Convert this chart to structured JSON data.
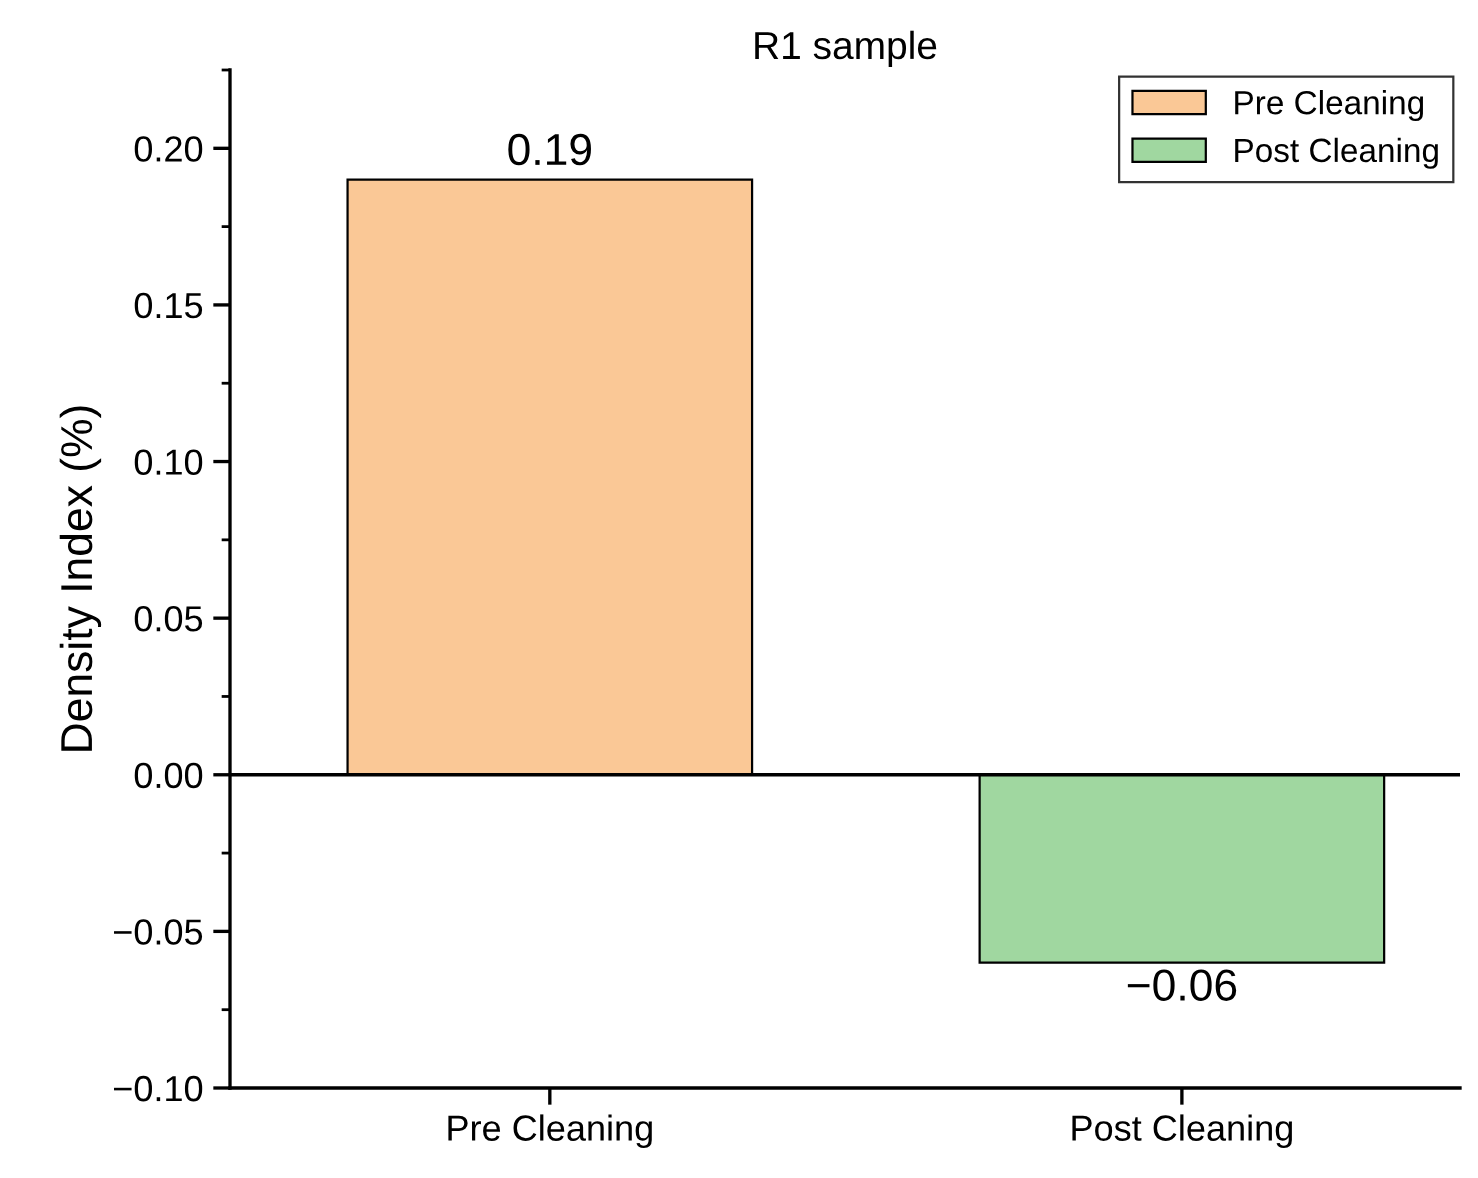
{
  "chart_data": {
    "type": "bar",
    "title": "R1 sample",
    "ylabel": "Density Index (%)",
    "categories": [
      "Pre Cleaning",
      "Post Cleaning"
    ],
    "series": [
      {
        "name": "Pre Cleaning",
        "color": "#fac896",
        "values": [
          0.19,
          null
        ]
      },
      {
        "name": "Post Cleaning",
        "color": "#a0d7a0",
        "values": [
          null,
          -0.06
        ]
      }
    ],
    "ylim": [
      -0.1,
      0.225
    ],
    "yticks": [
      {
        "value": -0.1,
        "label": "−0.10"
      },
      {
        "value": -0.05,
        "label": "−0.05"
      },
      {
        "value": 0,
        "label": "0.00"
      },
      {
        "value": 0.05,
        "label": "0.05"
      },
      {
        "value": 0.1,
        "label": "0.10"
      },
      {
        "value": 0.15,
        "label": "0.15"
      },
      {
        "value": 0.2,
        "label": "0.20"
      }
    ],
    "ref_lines": [
      {
        "axis": "y",
        "value": 0,
        "color": "#000000"
      }
    ],
    "data_labels": true,
    "legend": "top right",
    "grid": false
  }
}
